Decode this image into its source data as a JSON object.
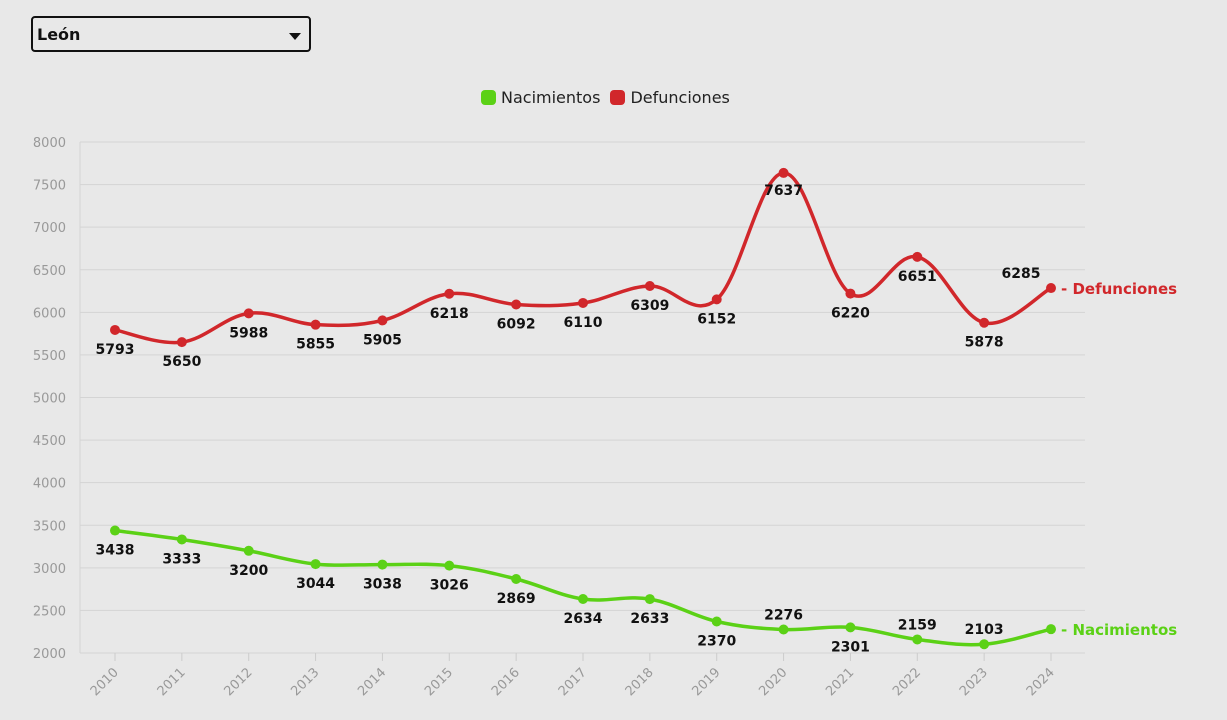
{
  "selector": {
    "value": "León"
  },
  "legend": [
    {
      "label": "Nacimientos",
      "color": "#5bd116"
    },
    {
      "label": "Defunciones",
      "color": "#d1272b"
    }
  ],
  "chart_data": {
    "type": "line",
    "categories": [
      "2010",
      "2011",
      "2012",
      "2013",
      "2014",
      "2015",
      "2016",
      "2017",
      "2018",
      "2019",
      "2020",
      "2021",
      "2022",
      "2023",
      "2024"
    ],
    "ylim": [
      2000,
      8000
    ],
    "yticks": [
      2000,
      2500,
      3000,
      3500,
      4000,
      4500,
      5000,
      5500,
      6000,
      6500,
      7000,
      7500,
      8000
    ],
    "grid": true,
    "legend_position": "top",
    "series": [
      {
        "name": "Nacimientos",
        "color": "#5bd116",
        "values": [
          3438,
          3333,
          3200,
          3044,
          3038,
          3026,
          2869,
          2634,
          2633,
          2370,
          2276,
          2301,
          2159,
          2103,
          2280
        ],
        "labels": [
          "3438",
          "3333",
          "3200",
          "3044",
          "3038",
          "3026",
          "2869",
          "2634",
          "2633",
          "2370",
          "2276",
          "2301",
          "2159",
          "2103",
          ""
        ],
        "end_label": "Nacimientos"
      },
      {
        "name": "Defunciones",
        "color": "#d1272b",
        "values": [
          5793,
          5650,
          5988,
          5855,
          5905,
          6218,
          6092,
          6110,
          6309,
          6152,
          7637,
          6220,
          6651,
          5878,
          6285
        ],
        "labels": [
          "5793",
          "5650",
          "5988",
          "5855",
          "5905",
          "6218",
          "6092",
          "6110",
          "6309",
          "6152",
          "7637",
          "6220",
          "6651",
          "5878",
          "6285"
        ],
        "end_label": "Defunciones"
      }
    ]
  }
}
